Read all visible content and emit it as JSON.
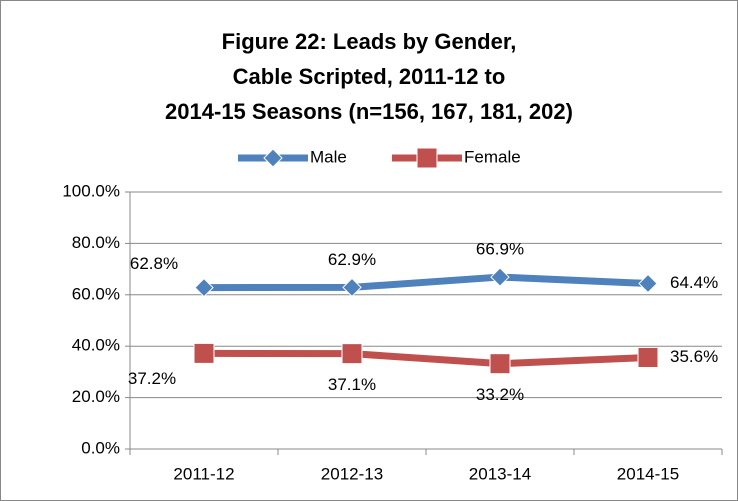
{
  "chart_data": {
    "type": "line",
    "title_lines": [
      "Figure 22:  Leads by Gender,",
      "Cable Scripted, 2011-12 to",
      "2014-15 Seasons (n=156, 167, 181, 202)"
    ],
    "categories": [
      "2011-12",
      "2012-13",
      "2013-14",
      "2014-15"
    ],
    "series": [
      {
        "name": "Male",
        "color": "#4f81bd",
        "marker": "diamond",
        "values": [
          62.8,
          62.9,
          66.9,
          64.4
        ],
        "value_labels": [
          "62.8%",
          "62.9%",
          "66.9%",
          "64.4%"
        ]
      },
      {
        "name": "Female",
        "color": "#c0504d",
        "marker": "square",
        "values": [
          37.2,
          37.1,
          33.2,
          35.6
        ],
        "value_labels": [
          "37.2%",
          "37.1%",
          "33.2%",
          "35.6%"
        ]
      }
    ],
    "ylim": [
      0,
      100
    ],
    "yticks": [
      {
        "value": 0,
        "label": "0.0%"
      },
      {
        "value": 20,
        "label": "20.0%"
      },
      {
        "value": 40,
        "label": "40.0%"
      },
      {
        "value": 60,
        "label": "60.0%"
      },
      {
        "value": 80,
        "label": "80.0%"
      },
      {
        "value": 100,
        "label": "100.0%"
      }
    ],
    "grid": true,
    "legend": "top"
  }
}
